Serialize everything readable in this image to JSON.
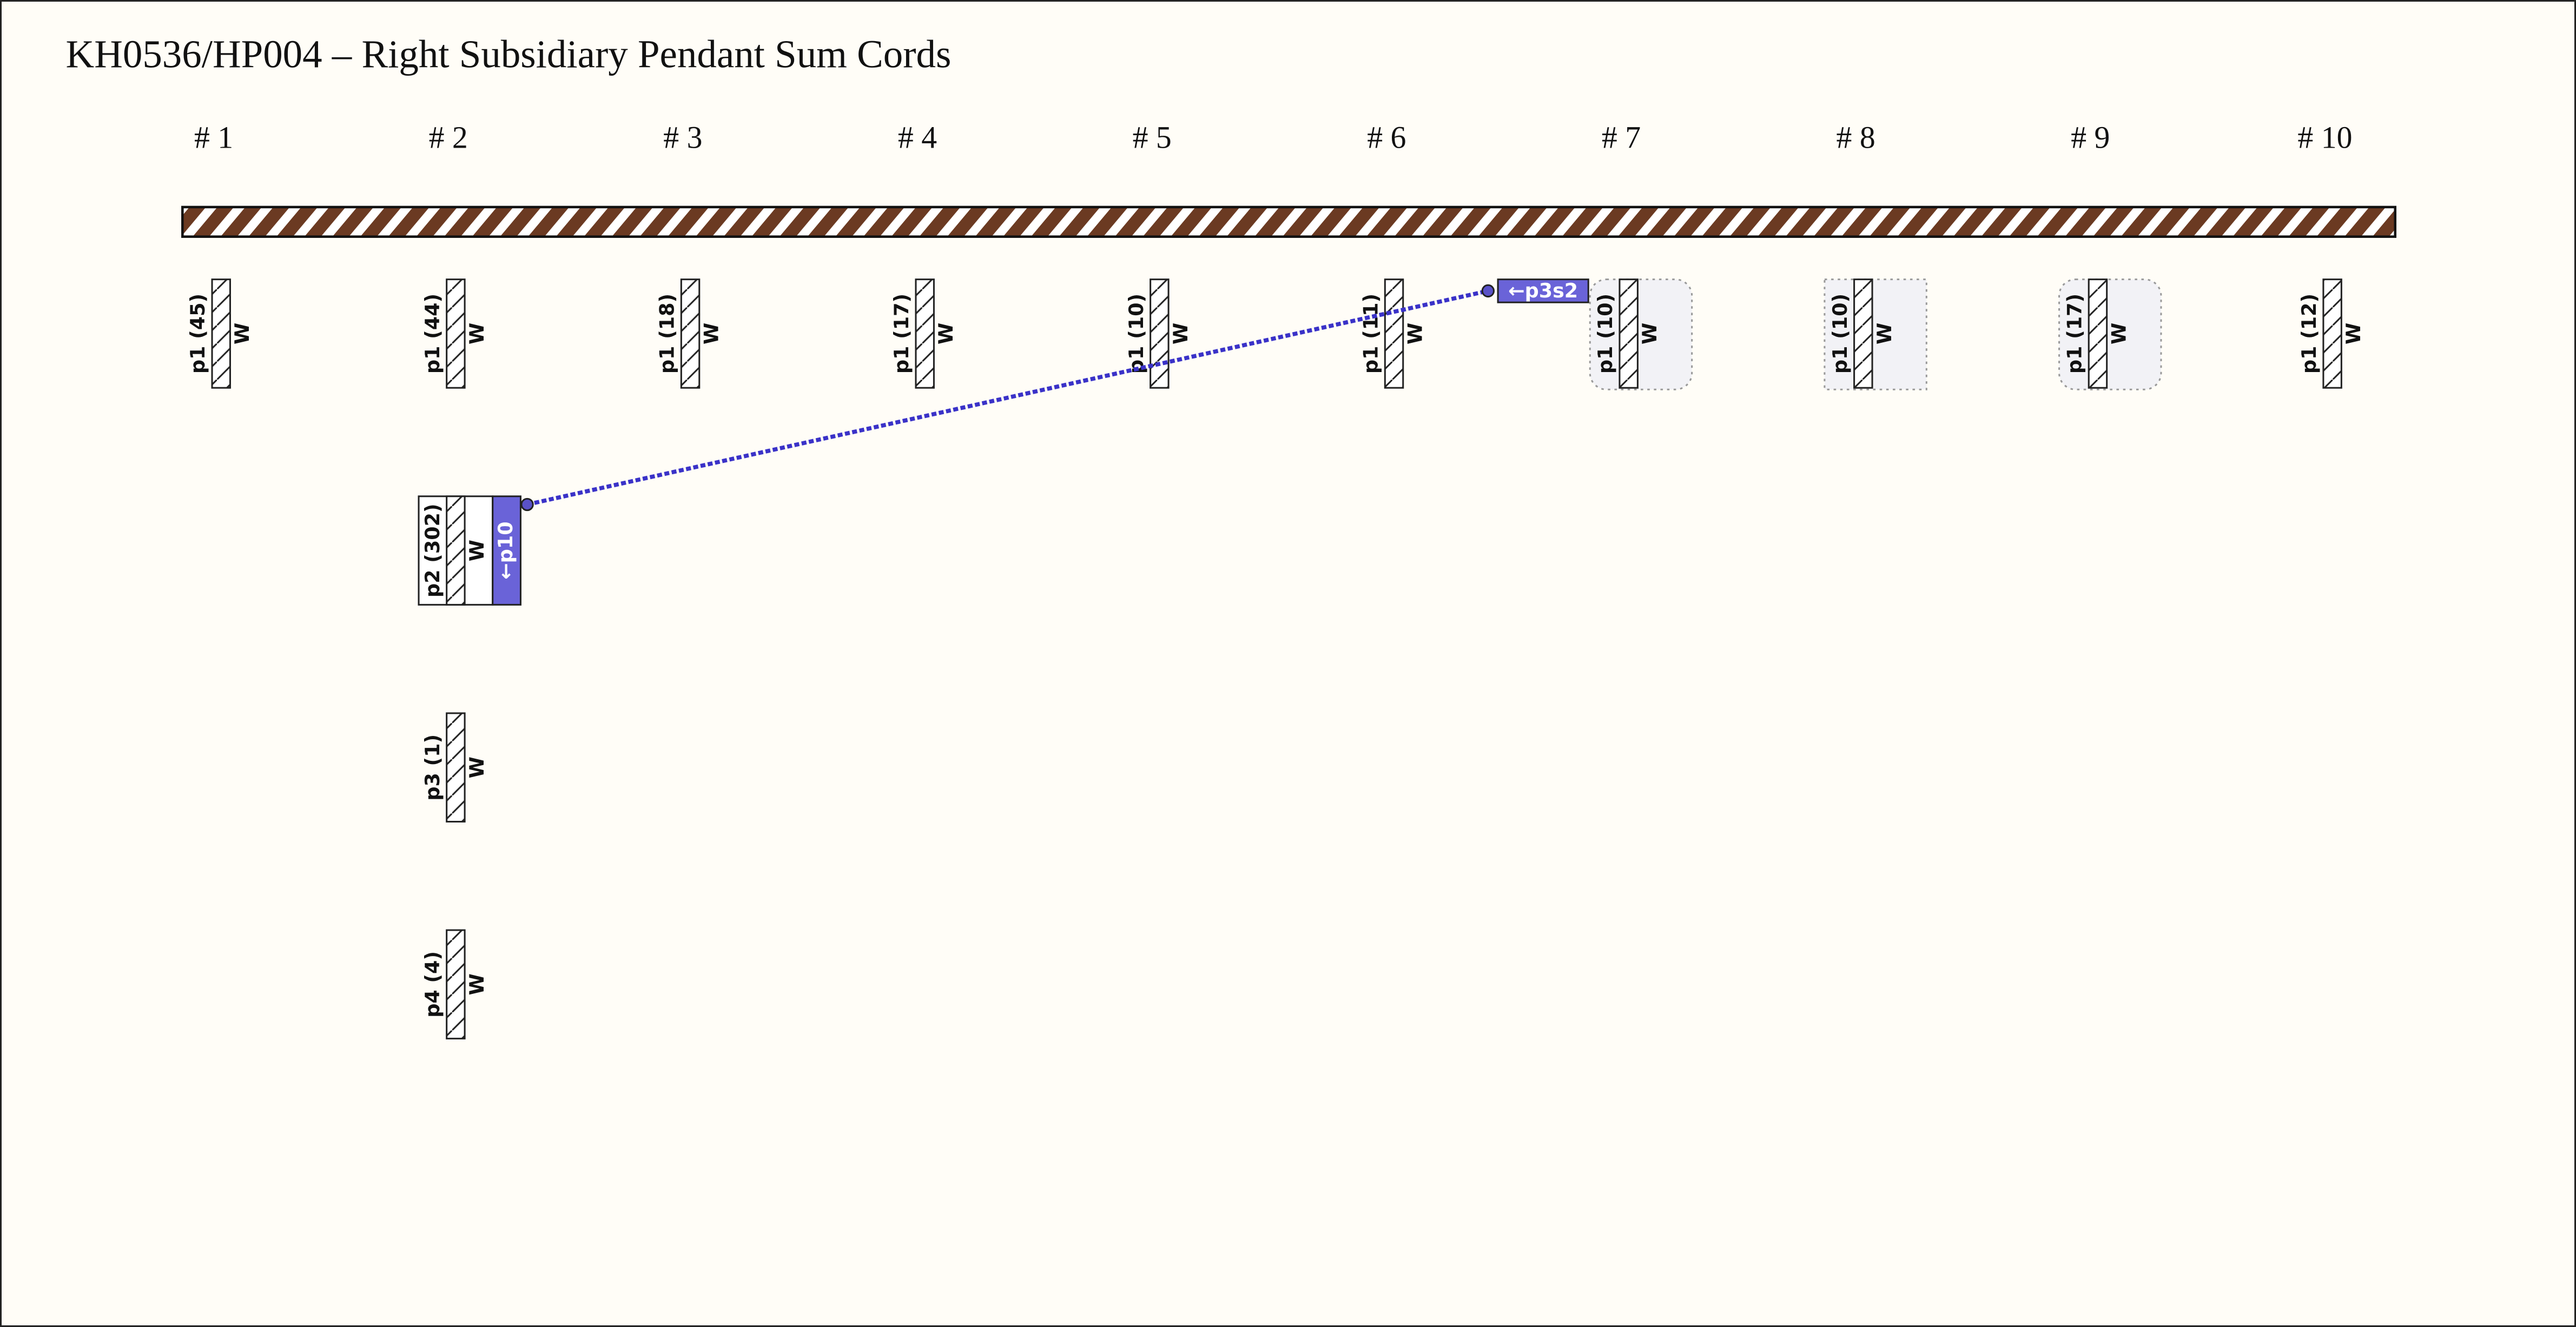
{
  "title": "KH0536/HP004 – Right Subsidiary Pendant Sum Cords",
  "columns": [
    {
      "label": "# 1",
      "cords": [
        {
          "label": "p1 (45)",
          "color": "W"
        }
      ]
    },
    {
      "label": "# 2",
      "cords": [
        {
          "label": "p1 (44)",
          "color": "W"
        },
        {
          "label": "p2 (302)",
          "color": "W",
          "tag": "←p10"
        },
        {
          "label": "p3 (1)",
          "color": "W"
        },
        {
          "label": "p4 (4)",
          "color": "W"
        }
      ]
    },
    {
      "label": "# 3",
      "cords": [
        {
          "label": "p1 (18)",
          "color": "W"
        }
      ]
    },
    {
      "label": "# 4",
      "cords": [
        {
          "label": "p1 (17)",
          "color": "W"
        }
      ]
    },
    {
      "label": "# 5",
      "cords": [
        {
          "label": "p1 (10)",
          "color": "W"
        }
      ]
    },
    {
      "label": "# 6",
      "cords": [
        {
          "label": "p1 (11)",
          "color": "W"
        }
      ]
    },
    {
      "label": "# 7",
      "cords": [
        {
          "label": "p1 (10)",
          "color": "W",
          "tag": "←p3s2"
        }
      ]
    },
    {
      "label": "# 8",
      "cords": [
        {
          "label": "p1 (10)",
          "color": "W"
        }
      ]
    },
    {
      "label": "# 9",
      "cords": [
        {
          "label": "p1 (17)",
          "color": "W"
        }
      ]
    },
    {
      "label": "# 10",
      "cords": [
        {
          "label": "p1 (12)",
          "color": "W"
        }
      ]
    }
  ]
}
